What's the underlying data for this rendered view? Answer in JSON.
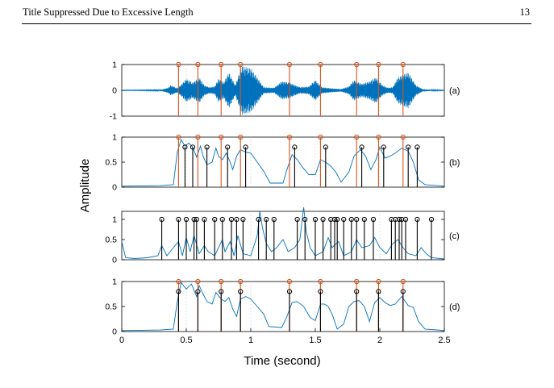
{
  "header": {
    "running_title": "Title Suppressed Due to Excessive Length",
    "page_number": "13"
  },
  "colors": {
    "signal": "#0072BD",
    "reference_marker": "#D95319",
    "detected_marker": "#000000"
  },
  "chart_data": {
    "type": "line",
    "xlabel": "Time (second)",
    "ylabel": "Amplitude",
    "xlim": [
      0,
      2.5
    ],
    "x_ticks": [
      "0",
      "0.5",
      "1",
      "1.5",
      "2",
      "2.5"
    ],
    "grid": true,
    "reference_times": [
      0.44,
      0.59,
      0.77,
      0.92,
      1.3,
      1.54,
      1.82,
      1.99,
      2.18
    ],
    "panels": [
      {
        "label": "(a)",
        "kind": "waveform",
        "ylim": [
          -1,
          1
        ],
        "y_ticks": [
          "1",
          "0",
          "-1"
        ],
        "envelope": [
          [
            0.0,
            0.01
          ],
          [
            0.1,
            0.01
          ],
          [
            0.3,
            0.02
          ],
          [
            0.33,
            0.06
          ],
          [
            0.36,
            0.1
          ],
          [
            0.38,
            0.2
          ],
          [
            0.43,
            0.08
          ],
          [
            0.46,
            0.22
          ],
          [
            0.5,
            0.45
          ],
          [
            0.55,
            0.3
          ],
          [
            0.6,
            0.5
          ],
          [
            0.64,
            0.2
          ],
          [
            0.68,
            0.12
          ],
          [
            0.72,
            0.15
          ],
          [
            0.75,
            0.45
          ],
          [
            0.79,
            0.3
          ],
          [
            0.83,
            0.7
          ],
          [
            0.88,
            0.2
          ],
          [
            0.93,
            0.95
          ],
          [
            1.0,
            0.85
          ],
          [
            1.05,
            0.5
          ],
          [
            1.1,
            0.12
          ],
          [
            1.18,
            0.1
          ],
          [
            1.24,
            0.35
          ],
          [
            1.3,
            0.3
          ],
          [
            1.38,
            0.12
          ],
          [
            1.45,
            0.15
          ],
          [
            1.5,
            0.4
          ],
          [
            1.55,
            0.12
          ],
          [
            1.62,
            0.08
          ],
          [
            1.7,
            0.05
          ],
          [
            1.76,
            0.15
          ],
          [
            1.8,
            0.4
          ],
          [
            1.86,
            0.25
          ],
          [
            1.92,
            0.35
          ],
          [
            1.97,
            0.5
          ],
          [
            2.02,
            0.2
          ],
          [
            2.06,
            0.1
          ],
          [
            2.1,
            0.12
          ],
          [
            2.14,
            0.5
          ],
          [
            2.22,
            0.7
          ],
          [
            2.28,
            0.2
          ],
          [
            2.33,
            0.05
          ],
          [
            2.4,
            0.02
          ],
          [
            2.5,
            0.01
          ]
        ],
        "detected_times": []
      },
      {
        "label": "(b)",
        "kind": "envelope",
        "ylim": [
          0,
          1
        ],
        "y_ticks": [
          "1",
          "0.5",
          "0"
        ],
        "points": [
          [
            0.0,
            0.02
          ],
          [
            0.3,
            0.03
          ],
          [
            0.4,
            0.05
          ],
          [
            0.43,
            0.7
          ],
          [
            0.46,
            0.95
          ],
          [
            0.49,
            0.82
          ],
          [
            0.52,
            0.88
          ],
          [
            0.55,
            0.8
          ],
          [
            0.58,
            0.6
          ],
          [
            0.61,
            0.82
          ],
          [
            0.63,
            0.62
          ],
          [
            0.66,
            0.45
          ],
          [
            0.7,
            0.5
          ],
          [
            0.73,
            0.78
          ],
          [
            0.75,
            0.62
          ],
          [
            0.78,
            0.55
          ],
          [
            0.81,
            0.68
          ],
          [
            0.84,
            0.5
          ],
          [
            0.86,
            0.35
          ],
          [
            0.89,
            0.62
          ],
          [
            0.92,
            0.75
          ],
          [
            0.96,
            0.7
          ],
          [
            1.0,
            0.68
          ],
          [
            1.05,
            0.5
          ],
          [
            1.1,
            0.32
          ],
          [
            1.15,
            0.08
          ],
          [
            1.25,
            0.08
          ],
          [
            1.28,
            0.35
          ],
          [
            1.32,
            0.65
          ],
          [
            1.36,
            0.55
          ],
          [
            1.4,
            0.4
          ],
          [
            1.45,
            0.25
          ],
          [
            1.5,
            0.25
          ],
          [
            1.54,
            0.55
          ],
          [
            1.58,
            0.5
          ],
          [
            1.62,
            0.42
          ],
          [
            1.66,
            0.3
          ],
          [
            1.7,
            0.1
          ],
          [
            1.76,
            0.3
          ],
          [
            1.8,
            0.62
          ],
          [
            1.85,
            0.75
          ],
          [
            1.89,
            0.62
          ],
          [
            1.93,
            0.35
          ],
          [
            1.97,
            0.55
          ],
          [
            2.0,
            0.8
          ],
          [
            2.04,
            0.58
          ],
          [
            2.08,
            0.62
          ],
          [
            2.12,
            0.68
          ],
          [
            2.17,
            0.78
          ],
          [
            2.22,
            0.72
          ],
          [
            2.26,
            0.5
          ],
          [
            2.3,
            0.15
          ],
          [
            2.35,
            0.05
          ],
          [
            2.45,
            0.03
          ],
          [
            2.5,
            0.02
          ]
        ],
        "detected_times": [
          0.49,
          0.55,
          0.66,
          0.82,
          0.96,
          1.34,
          1.58,
          1.86,
          2.03,
          2.22,
          2.29
        ]
      },
      {
        "label": "(c)",
        "kind": "envelope",
        "ylim": [
          0,
          1.2
        ],
        "y_ticks": [
          "1",
          "0.5",
          "0"
        ],
        "points": [
          [
            0.0,
            0.45
          ],
          [
            0.03,
            0.05
          ],
          [
            0.1,
            0.03
          ],
          [
            0.2,
            0.05
          ],
          [
            0.28,
            0.1
          ],
          [
            0.31,
            0.35
          ],
          [
            0.35,
            0.1
          ],
          [
            0.4,
            0.3
          ],
          [
            0.44,
            0.45
          ],
          [
            0.47,
            0.1
          ],
          [
            0.5,
            0.55
          ],
          [
            0.53,
            0.2
          ],
          [
            0.56,
            0.6
          ],
          [
            0.6,
            0.15
          ],
          [
            0.64,
            0.35
          ],
          [
            0.67,
            0.2
          ],
          [
            0.72,
            0.1
          ],
          [
            0.78,
            0.5
          ],
          [
            0.8,
            0.2
          ],
          [
            0.84,
            0.45
          ],
          [
            0.87,
            0.1
          ],
          [
            0.9,
            0.6
          ],
          [
            0.94,
            0.15
          ],
          [
            1.0,
            0.1
          ],
          [
            1.05,
            0.6
          ],
          [
            1.07,
            1.2
          ],
          [
            1.09,
            0.8
          ],
          [
            1.12,
            0.4
          ],
          [
            1.16,
            0.2
          ],
          [
            1.2,
            0.3
          ],
          [
            1.25,
            0.5
          ],
          [
            1.29,
            0.2
          ],
          [
            1.34,
            0.3
          ],
          [
            1.38,
            0.5
          ],
          [
            1.41,
            1.3
          ],
          [
            1.43,
            0.7
          ],
          [
            1.46,
            0.3
          ],
          [
            1.5,
            0.1
          ],
          [
            1.56,
            0.2
          ],
          [
            1.6,
            0.55
          ],
          [
            1.63,
            0.3
          ],
          [
            1.68,
            0.45
          ],
          [
            1.72,
            0.1
          ],
          [
            1.78,
            0.2
          ],
          [
            1.82,
            0.5
          ],
          [
            1.86,
            0.3
          ],
          [
            1.92,
            0.35
          ],
          [
            1.96,
            0.55
          ],
          [
            2.0,
            0.3
          ],
          [
            2.05,
            0.15
          ],
          [
            2.1,
            0.4
          ],
          [
            2.14,
            0.5
          ],
          [
            2.18,
            0.3
          ],
          [
            2.22,
            0.15
          ],
          [
            2.28,
            0.1
          ],
          [
            2.32,
            0.3
          ],
          [
            2.36,
            0.15
          ],
          [
            2.4,
            0.05
          ],
          [
            2.5,
            0.02
          ]
        ],
        "detected_times": [
          0.31,
          0.44,
          0.5,
          0.56,
          0.58,
          0.64,
          0.72,
          0.78,
          0.85,
          0.89,
          0.94,
          1.06,
          1.12,
          1.18,
          1.36,
          1.42,
          1.5,
          1.56,
          1.62,
          1.65,
          1.67,
          1.72,
          1.78,
          1.82,
          1.88,
          1.95,
          2.09,
          2.12,
          2.15,
          2.17,
          2.2,
          2.29,
          2.4
        ]
      },
      {
        "label": "(d)",
        "kind": "envelope",
        "ylim": [
          0,
          1
        ],
        "y_ticks": [
          "1",
          "0.5",
          "0"
        ],
        "points": [
          [
            0.0,
            0.02
          ],
          [
            0.3,
            0.03
          ],
          [
            0.4,
            0.05
          ],
          [
            0.43,
            0.6
          ],
          [
            0.46,
            0.98
          ],
          [
            0.5,
            0.85
          ],
          [
            0.54,
            0.95
          ],
          [
            0.58,
            0.7
          ],
          [
            0.6,
            0.92
          ],
          [
            0.63,
            0.75
          ],
          [
            0.66,
            0.6
          ],
          [
            0.7,
            0.55
          ],
          [
            0.73,
            0.78
          ],
          [
            0.77,
            0.65
          ],
          [
            0.8,
            0.6
          ],
          [
            0.83,
            0.68
          ],
          [
            0.86,
            0.45
          ],
          [
            0.89,
            0.3
          ],
          [
            0.92,
            0.65
          ],
          [
            0.96,
            0.7
          ],
          [
            1.0,
            0.65
          ],
          [
            1.05,
            0.5
          ],
          [
            1.1,
            0.35
          ],
          [
            1.14,
            0.1
          ],
          [
            1.24,
            0.08
          ],
          [
            1.28,
            0.3
          ],
          [
            1.32,
            0.58
          ],
          [
            1.36,
            0.6
          ],
          [
            1.41,
            0.5
          ],
          [
            1.46,
            0.28
          ],
          [
            1.5,
            0.22
          ],
          [
            1.54,
            0.55
          ],
          [
            1.57,
            0.55
          ],
          [
            1.6,
            0.5
          ],
          [
            1.63,
            0.35
          ],
          [
            1.67,
            0.05
          ],
          [
            1.72,
            0.15
          ],
          [
            1.76,
            0.5
          ],
          [
            1.8,
            0.6
          ],
          [
            1.84,
            0.62
          ],
          [
            1.88,
            0.5
          ],
          [
            1.92,
            0.2
          ],
          [
            1.96,
            0.58
          ],
          [
            2.0,
            0.68
          ],
          [
            2.04,
            0.58
          ],
          [
            2.08,
            0.52
          ],
          [
            2.12,
            0.55
          ],
          [
            2.17,
            0.7
          ],
          [
            2.22,
            0.52
          ],
          [
            2.26,
            0.48
          ],
          [
            2.3,
            0.2
          ],
          [
            2.35,
            0.05
          ],
          [
            2.45,
            0.03
          ],
          [
            2.5,
            0.02
          ]
        ],
        "detected_times": [
          0.44,
          0.59,
          0.77,
          0.92,
          1.3,
          1.54,
          1.82,
          1.99,
          2.18
        ]
      }
    ]
  }
}
